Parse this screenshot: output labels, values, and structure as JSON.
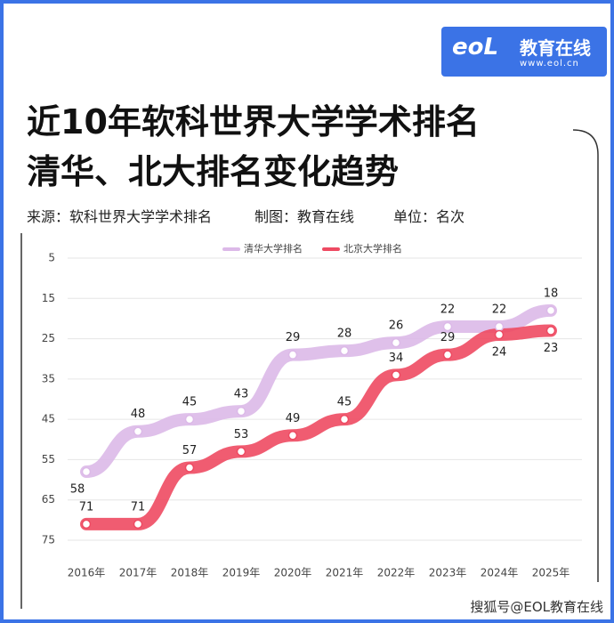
{
  "logo": {
    "name": "教育在线",
    "url": "www.eol.cn"
  },
  "header": {
    "title_line1": "近10年软科世界大学学术排名",
    "title_line2": "清华、北大排名变化趋势",
    "source": "来源：软科世界大学学术排名",
    "maker": "制图：教育在线",
    "unit": "单位：名次"
  },
  "footer": "搜狐号@EOL教育在线",
  "chart_data": {
    "type": "line",
    "categories": [
      "2016年",
      "2017年",
      "2018年",
      "2019年",
      "2020年",
      "2021年",
      "2022年",
      "2023年",
      "2024年",
      "2025年"
    ],
    "series": [
      {
        "name": "清华大学排名",
        "color": "#dcb9e8",
        "values": [
          58,
          48,
          45,
          43,
          29,
          28,
          26,
          22,
          22,
          18
        ]
      },
      {
        "name": "北京大学排名",
        "color": "#ee4a62",
        "values": [
          71,
          71,
          57,
          53,
          49,
          45,
          34,
          29,
          24,
          23
        ]
      }
    ],
    "ylim": [
      75,
      5
    ],
    "yticks": [
      5,
      15,
      25,
      35,
      45,
      55,
      65,
      75
    ],
    "grid": true,
    "legend": "top"
  }
}
